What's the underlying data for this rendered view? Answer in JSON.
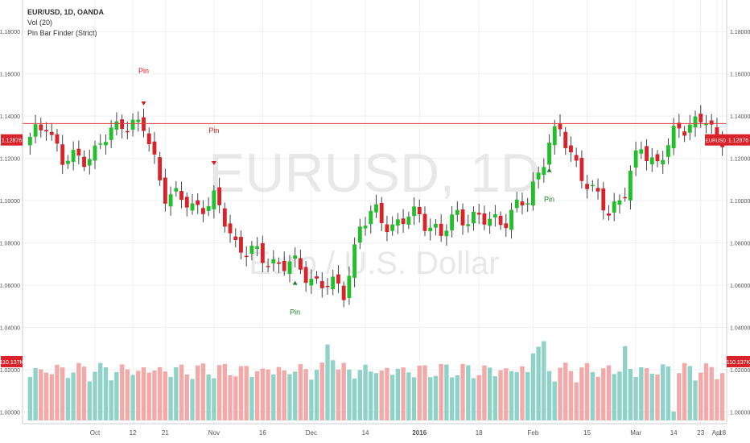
{
  "legend": {
    "symbol_line": "EUR/USD, 1D, OANDA",
    "vol_label": "Vol (20)",
    "indicator_label": "Pin Bar Finder (Strict)"
  },
  "watermark": {
    "symbol": "EURUSD, 1D",
    "description": "Euro / U.S. Dollar"
  },
  "colors": {
    "up": "#21bf2a",
    "down": "#d8232a",
    "vol_up": "#8fd3c8",
    "vol_down": "#f4a9a9",
    "pin_up": "#1e7b2a",
    "pin_down": "#e01818",
    "price_line": "#e04040",
    "grid": "#eef0f2"
  },
  "chart_data": {
    "type": "candlestick",
    "symbol": "EUR/USD",
    "timeframe": "1D",
    "source": "OANDA",
    "price_axis": {
      "range": [
        0.996,
        1.19
      ],
      "ticks": [
        "1.00000",
        "1.02000",
        "1.04000",
        "1.06000",
        "1.08000",
        "1.10000",
        "1.12000",
        "1.14000",
        "1.16000",
        "1.18000"
      ]
    },
    "time_axis": {
      "labels": [
        "Oct",
        "12",
        "21",
        "Nov",
        "16",
        "Dec",
        "14",
        "2016",
        "18",
        "Feb",
        "15",
        "Mar",
        "14",
        "23",
        "Apr",
        "18"
      ],
      "bold": [
        "2016"
      ]
    },
    "current_price": "1.12876",
    "price_line_level": 1.1365,
    "price_tag_label": "EURUSD",
    "volume_last": "110.137K",
    "pin_bars": [
      {
        "label": "Pin",
        "direction": "bearish",
        "date": "Oct 21"
      },
      {
        "label": "Pin",
        "direction": "bearish",
        "date": "Nov 3"
      },
      {
        "label": "Pin",
        "direction": "bullish",
        "date": "Nov 23"
      },
      {
        "label": "Pin",
        "direction": "bullish",
        "date": "Mar 2"
      }
    ],
    "close_path": [
      [
        0,
        1.128
      ],
      [
        3,
        1.138
      ],
      [
        6,
        1.118
      ],
      [
        12,
        1.123
      ],
      [
        17,
        1.138
      ],
      [
        21,
        1.134
      ],
      [
        25,
        1.104
      ],
      [
        30,
        1.097
      ],
      [
        34,
        1.1
      ],
      [
        38,
        1.08
      ],
      [
        43,
        1.072
      ],
      [
        48,
        1.07
      ],
      [
        53,
        1.062
      ],
      [
        58,
        1.057
      ],
      [
        61,
        1.088
      ],
      [
        64,
        1.094
      ],
      [
        67,
        1.088
      ],
      [
        72,
        1.094
      ],
      [
        76,
        1.083
      ],
      [
        79,
        1.094
      ],
      [
        84,
        1.09
      ],
      [
        88,
        1.092
      ],
      [
        92,
        1.1
      ],
      [
        96,
        1.128
      ],
      [
        98,
        1.132
      ],
      [
        101,
        1.118
      ],
      [
        104,
        1.103
      ],
      [
        107,
        1.095
      ],
      [
        110,
        1.105
      ],
      [
        113,
        1.125
      ],
      [
        116,
        1.118
      ],
      [
        119,
        1.13
      ],
      [
        122,
        1.138
      ],
      [
        125,
        1.138
      ],
      [
        127,
        1.126
      ],
      [
        128,
        1.129
      ]
    ]
  }
}
